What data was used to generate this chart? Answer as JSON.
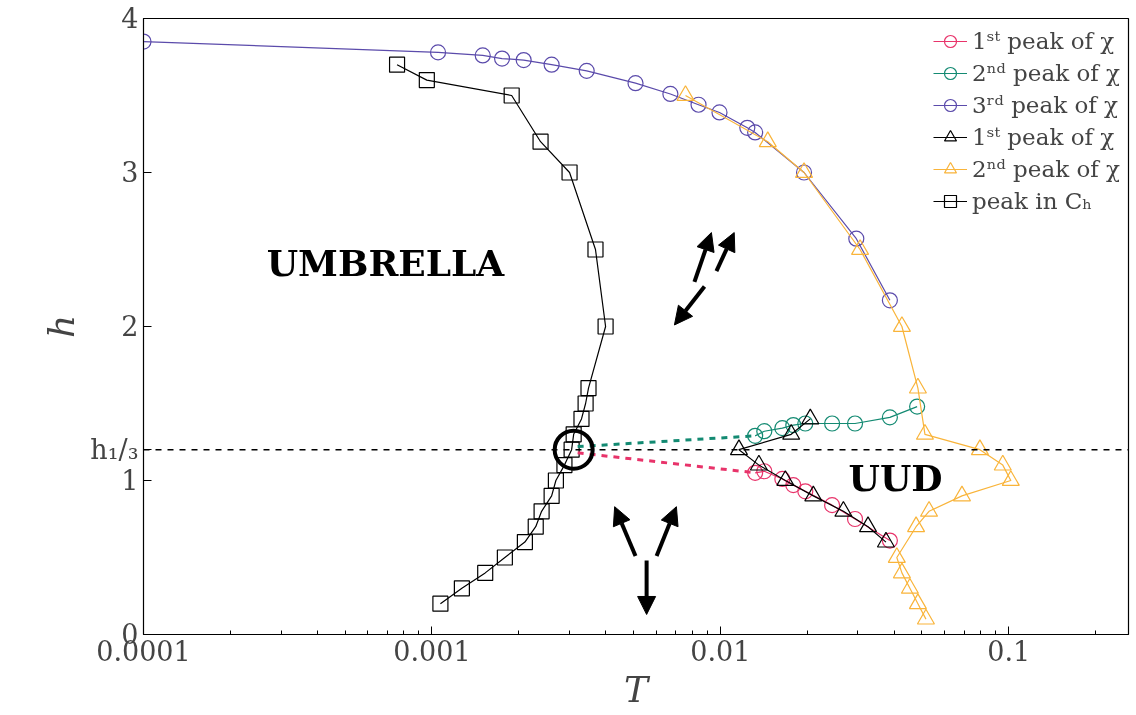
{
  "chart_data": {
    "type": "line",
    "xlabel": "T",
    "ylabel": "h",
    "log": "x",
    "xlim": [
      0.0001,
      0.26
    ],
    "ylim": [
      0,
      4
    ],
    "xticks": [
      0.0001,
      0.001,
      0.01,
      0.1
    ],
    "yticks": [
      0,
      1,
      2,
      3,
      4
    ],
    "grid": false,
    "legend": "top right",
    "ref_lines": [
      {
        "axis": "y",
        "value": 1.2,
        "label": "h₁/₃",
        "color": "#000000",
        "line_style": "dashed"
      }
    ],
    "annotations": [
      "UMBRELLA",
      "UUD"
    ],
    "series": [
      {
        "name": "1ˢᵗ peak of χ",
        "color": "#e8336a",
        "marker": "circle",
        "x": [
          0.0132,
          0.0142,
          0.0164,
          0.0179,
          0.0197,
          0.0244,
          0.0293,
          0.0387
        ],
        "values": [
          1.05,
          1.06,
          1.01,
          0.97,
          0.93,
          0.84,
          0.75,
          0.61
        ]
      },
      {
        "name": "2ⁿᵈ peak of χ",
        "color": "#138a72",
        "marker": "circle",
        "x": [
          0.0132,
          0.0142,
          0.0164,
          0.0179,
          0.0197,
          0.0244,
          0.0293,
          0.0387,
          0.0481
        ],
        "values": [
          1.29,
          1.32,
          1.34,
          1.36,
          1.37,
          1.37,
          1.37,
          1.41,
          1.48
        ]
      },
      {
        "name": "3ʳᵈ peak of χ",
        "color": "#5b4bab",
        "marker": "circle",
        "x": [
          0.0001,
          0.00105,
          0.0015,
          0.00175,
          0.00208,
          0.0026,
          0.00344,
          0.00508,
          0.00671,
          0.0084,
          0.00993,
          0.0124,
          0.0132,
          0.0195,
          0.0296,
          0.0387
        ],
        "values": [
          3.85,
          3.78,
          3.76,
          3.74,
          3.73,
          3.7,
          3.66,
          3.58,
          3.51,
          3.44,
          3.39,
          3.29,
          3.26,
          3.0,
          2.57,
          2.17
        ]
      },
      {
        "name": "1ˢᵗ peak of χ",
        "color": "#000000",
        "marker": "triangle",
        "x": [
          0.0205,
          0.0176,
          0.0116,
          0.0136,
          0.0168,
          0.021,
          0.0267,
          0.0325,
          0.0375
        ],
        "values": [
          1.4,
          1.3,
          1.2,
          1.1,
          1.0,
          0.9,
          0.8,
          0.7,
          0.6
        ]
      },
      {
        "name": "2ⁿᵈ peak of χ",
        "color": "#f9b43a",
        "marker": "triangle",
        "x": [
          0.00757,
          0.0146,
          0.0195,
          0.0305,
          0.0426,
          0.0484,
          0.0512,
          0.0794,
          0.0953,
          0.1016,
          0.0688,
          0.0529,
          0.0477,
          0.0409,
          0.0426,
          0.0454,
          0.0484,
          0.0516
        ],
        "values": [
          3.5,
          3.2,
          3.0,
          2.5,
          2.0,
          1.6,
          1.3,
          1.2,
          1.1,
          1.0,
          0.9,
          0.8,
          0.7,
          0.5,
          0.4,
          0.3,
          0.2,
          0.1
        ]
      },
      {
        "name": "peak in Cₕ",
        "color": "#000000",
        "marker": "square",
        "x": [
          0.000757,
          0.00096,
          0.00189,
          0.00238,
          0.003,
          0.00369,
          0.004,
          0.00349,
          0.00341,
          0.0033,
          0.0031,
          0.00305,
          0.00288,
          0.00269,
          0.0026,
          0.0024,
          0.00229,
          0.0021,
          0.00179,
          0.00153,
          0.00127,
          0.00107
        ],
        "values": [
          3.7,
          3.6,
          3.5,
          3.2,
          3.0,
          2.5,
          2.0,
          1.6,
          1.5,
          1.4,
          1.3,
          1.2,
          1.1,
          1.0,
          0.9,
          0.8,
          0.7,
          0.6,
          0.5,
          0.4,
          0.3,
          0.2
        ]
      },
      {
        "color": "#138a72",
        "marker": "none",
        "line_style": "dashed",
        "x": [
          0.0032,
          0.0132
        ],
        "values": [
          1.22,
          1.29
        ]
      },
      {
        "color": "#e8336a",
        "marker": "none",
        "line_style": "dashed",
        "x": [
          0.0032,
          0.0132
        ],
        "values": [
          1.18,
          1.05
        ]
      },
      {
        "type": "bubble",
        "color": "#000000",
        "x": [
          0.0031
        ],
        "values": [
          1.2
        ],
        "sizes": [
          1
        ]
      }
    ]
  }
}
